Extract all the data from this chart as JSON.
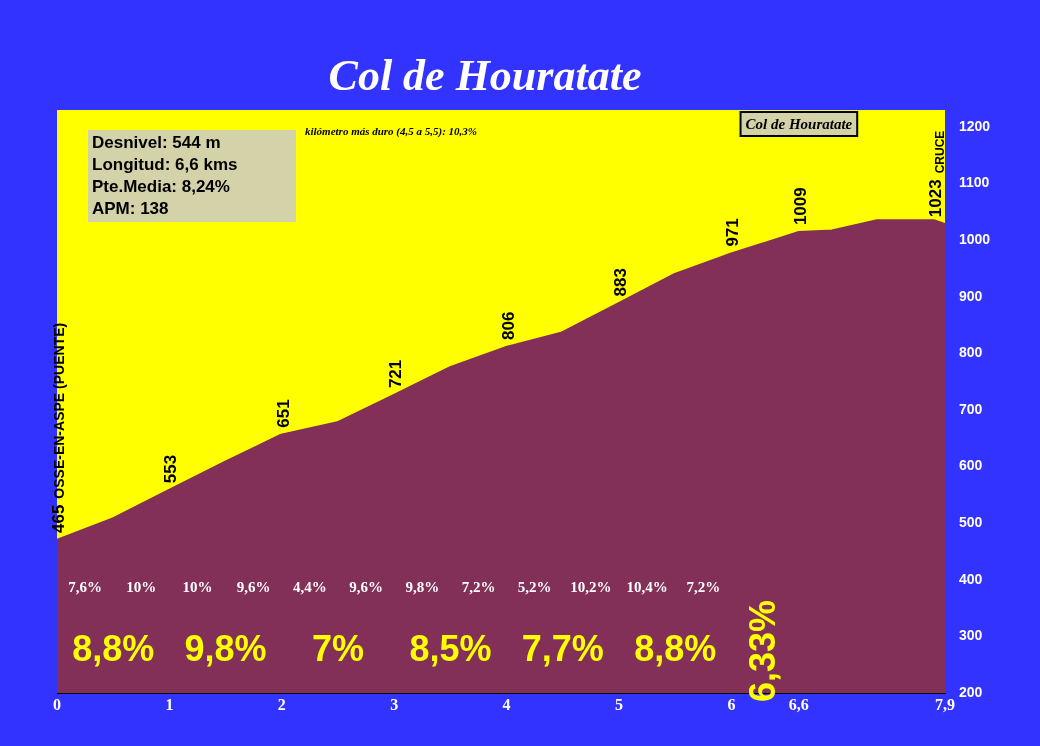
{
  "chart_data": {
    "type": "area",
    "title": "Col de Houratate",
    "subtitle": "kilómetro más duro (4,5 a 5,5): 10,3%",
    "x": [
      0,
      0.5,
      1,
      1.5,
      2,
      2.5,
      3,
      3.5,
      4,
      4.5,
      5,
      5.5,
      6,
      6.6,
      6.9,
      7.3,
      7.8,
      7.9
    ],
    "series": [
      {
        "color": "#833058",
        "values": [
          465,
          503,
          553,
          603,
          651,
          673,
          721,
          770,
          806,
          832,
          883,
          935,
          971,
          1009,
          1012,
          1030,
          1030,
          1023
        ],
        "value_labels": [
          "465",
          null,
          "553",
          null,
          "651",
          null,
          "721",
          null,
          "806",
          null,
          "883",
          null,
          "971",
          "1009",
          null,
          null,
          null,
          "1023"
        ]
      }
    ],
    "xlim": [
      0,
      7.9
    ],
    "xticks": [
      0,
      1,
      2,
      3,
      4,
      5,
      6,
      {
        "value": 6.6,
        "label": "6,6"
      },
      {
        "value": 7.9,
        "label": "7,9"
      }
    ],
    "ylim": [
      200,
      1230
    ],
    "yticks": [
      200,
      300,
      400,
      500,
      600,
      700,
      800,
      900,
      1000,
      1100,
      1200
    ],
    "grid": false,
    "legend": false,
    "annotations": [
      "Desnivel: 544 m",
      "Longitud: 6,6 kms",
      "Pte.Media: 8,24%",
      "APM: 138",
      "OSSE-EN-ASPE (PUENTE)",
      "Col de Houratate",
      "CRUCE",
      "7,6%",
      "10%",
      "10%",
      "9,6%",
      "4,4%",
      "9,6%",
      "9,8%",
      "7,2%",
      "5,2%",
      "10,2%",
      "10,4%",
      "7,2%",
      "8,8%",
      "9,8%",
      "7%",
      "8,5%",
      "7,7%",
      "8,8%",
      "6,33%"
    ]
  }
}
